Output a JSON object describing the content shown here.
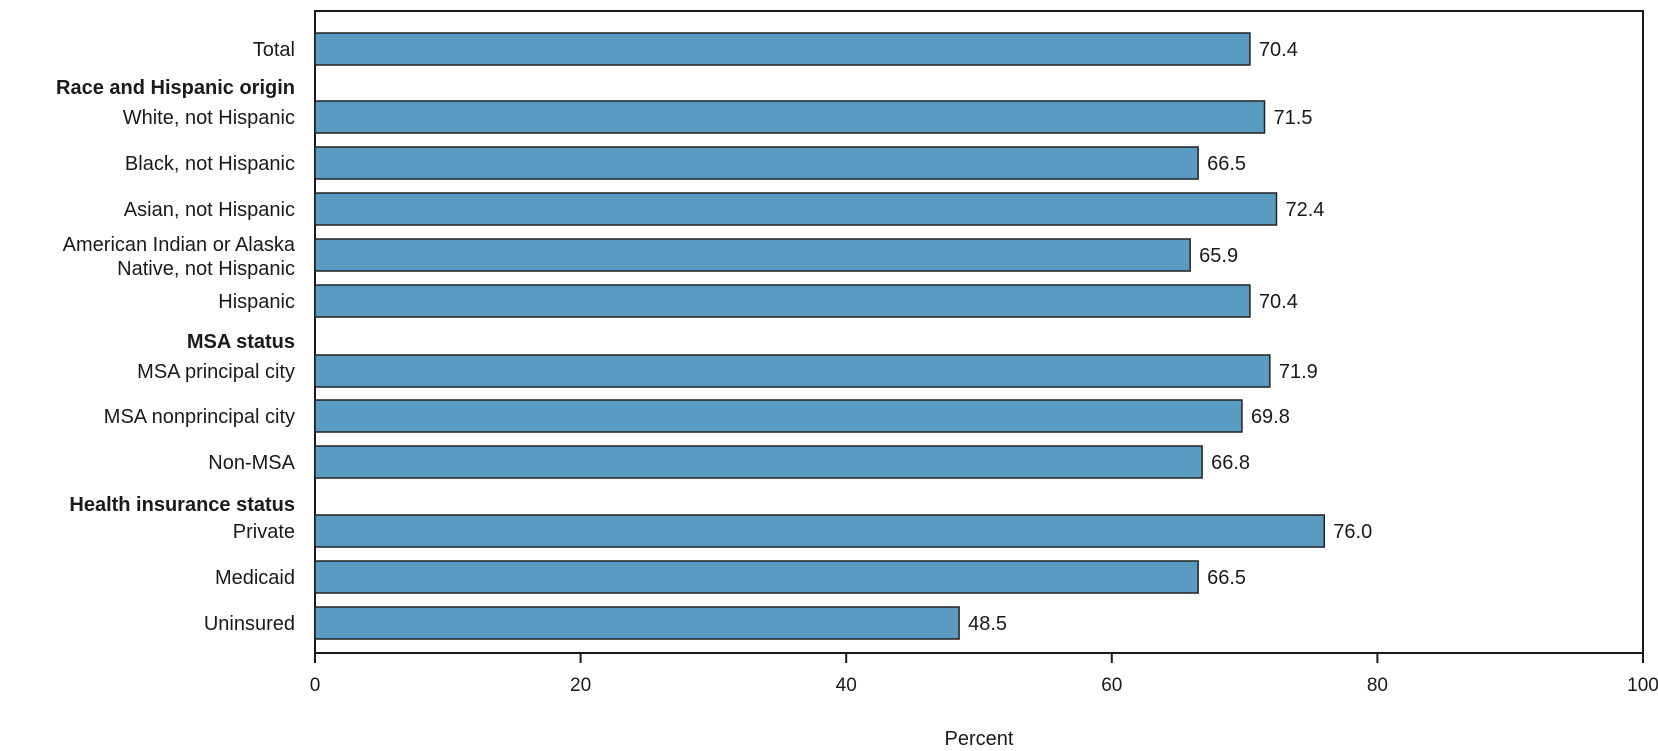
{
  "chart_data": {
    "type": "bar",
    "orientation": "horizontal",
    "title": "",
    "xlabel": "Percent",
    "ylabel": "",
    "xlim": [
      0,
      100
    ],
    "xticks": [
      "0",
      "20",
      "40",
      "60",
      "80",
      "100"
    ],
    "grid": false,
    "bar_color": "#5b9bc2",
    "bar_edge_color": "#222222",
    "rows": [
      {
        "label": "Total",
        "value": 70.4,
        "value_label": "70.4"
      },
      {
        "header": "Race and Hispanic origin"
      },
      {
        "label": "White, not Hispanic",
        "value": 71.5,
        "value_label": "71.5"
      },
      {
        "label": "Black, not Hispanic",
        "value": 66.5,
        "value_label": "66.5"
      },
      {
        "label": "Asian, not Hispanic",
        "value": 72.4,
        "value_label": "72.4"
      },
      {
        "label": "American Indian or Alaska Native, not Hispanic",
        "label_lines": [
          "American Indian or Alaska",
          "Native, not Hispanic"
        ],
        "value": 65.9,
        "value_label": "65.9"
      },
      {
        "label": "Hispanic",
        "value": 70.4,
        "value_label": "70.4"
      },
      {
        "header": "MSA status"
      },
      {
        "label": "MSA principal city",
        "value": 71.9,
        "value_label": "71.9"
      },
      {
        "label": "MSA nonprincipal city",
        "value": 69.8,
        "value_label": "69.8"
      },
      {
        "label": "Non-MSA",
        "value": 66.8,
        "value_label": "66.8"
      },
      {
        "header": "Health insurance status"
      },
      {
        "label": "Private",
        "value": 76.0,
        "value_label": "76.0"
      },
      {
        "label": "Medicaid",
        "value": 66.5,
        "value_label": "66.5"
      },
      {
        "label": "Uninsured",
        "value": 48.5,
        "value_label": "48.5"
      }
    ]
  }
}
